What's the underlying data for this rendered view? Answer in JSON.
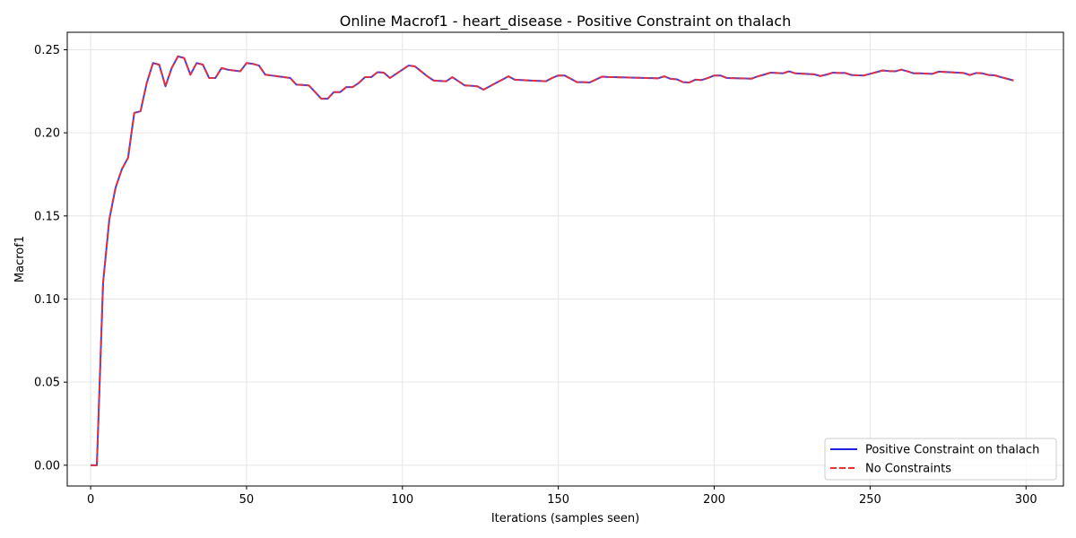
{
  "chart_data": {
    "type": "line",
    "title": "Online Macrof1 - heart_disease - Positive Constraint on thalach",
    "xlabel": "Iterations (samples seen)",
    "ylabel": "Macrof1",
    "xlim": [
      -7.5,
      312
    ],
    "ylim": [
      -0.0125,
      0.2605
    ],
    "xticks": [
      0,
      50,
      100,
      150,
      200,
      250,
      300
    ],
    "yticks": [
      0.0,
      0.05,
      0.1,
      0.15,
      0.2,
      0.25
    ],
    "xtick_labels": [
      "0",
      "50",
      "100",
      "150",
      "200",
      "250",
      "300"
    ],
    "ytick_labels": [
      "0.00",
      "0.05",
      "0.10",
      "0.15",
      "0.20",
      "0.25"
    ],
    "grid": true,
    "legend_position": "lower-right",
    "x": [
      0,
      2,
      4,
      6,
      8,
      10,
      12,
      14,
      16,
      18,
      20,
      22,
      24,
      26,
      28,
      30,
      32,
      34,
      36,
      38,
      40,
      42,
      44,
      46,
      48,
      50,
      52,
      54,
      56,
      58,
      60,
      62,
      64,
      66,
      68,
      70,
      72,
      74,
      76,
      78,
      80,
      82,
      84,
      86,
      88,
      90,
      92,
      94,
      96,
      98,
      100,
      102,
      104,
      106,
      108,
      110,
      112,
      114,
      116,
      118,
      120,
      122,
      124,
      126,
      128,
      130,
      132,
      134,
      136,
      138,
      140,
      142,
      144,
      146,
      148,
      150,
      152,
      154,
      156,
      158,
      160,
      162,
      164,
      166,
      168,
      170,
      172,
      174,
      176,
      178,
      180,
      182,
      184,
      186,
      188,
      190,
      192,
      194,
      196,
      198,
      200,
      202,
      204,
      206,
      208,
      210,
      212,
      214,
      216,
      218,
      220,
      222,
      224,
      226,
      228,
      230,
      232,
      234,
      236,
      238,
      240,
      242,
      244,
      246,
      248,
      250,
      252,
      254,
      256,
      258,
      260,
      262,
      264,
      266,
      268,
      270,
      272,
      274,
      276,
      278,
      280,
      282,
      284,
      286,
      288,
      290,
      292,
      294,
      296
    ],
    "series": [
      {
        "name": "Positive Constraint on thalach",
        "color": "#1f1fe0",
        "style": "solid",
        "values": [
          0.0,
          0.0,
          0.11,
          0.148,
          0.167,
          0.178,
          0.185,
          0.212,
          0.213,
          0.23,
          0.242,
          0.241,
          0.228,
          0.239,
          0.246,
          0.245,
          0.235,
          0.242,
          0.241,
          0.233,
          0.233,
          0.239,
          0.238,
          0.2375,
          0.237,
          0.242,
          0.2415,
          0.2405,
          0.235,
          0.2345,
          0.234,
          0.2335,
          0.233,
          0.229,
          0.2288,
          0.2285,
          0.2245,
          0.2205,
          0.2205,
          0.2245,
          0.2245,
          0.2275,
          0.2275,
          0.23,
          0.2335,
          0.2335,
          0.2365,
          0.2362,
          0.233,
          0.2355,
          0.238,
          0.2405,
          0.24,
          0.237,
          0.234,
          0.2315,
          0.2312,
          0.231,
          0.2335,
          0.231,
          0.2285,
          0.2283,
          0.228,
          0.226,
          0.228,
          0.23,
          0.232,
          0.234,
          0.232,
          0.2318,
          0.2316,
          0.2314,
          0.2312,
          0.231,
          0.233,
          0.2345,
          0.2345,
          0.2325,
          0.2305,
          0.2305,
          0.2303,
          0.232,
          0.2338,
          0.2336,
          0.2335,
          0.2334,
          0.2333,
          0.2332,
          0.2331,
          0.233,
          0.2329,
          0.2328,
          0.234,
          0.2325,
          0.2322,
          0.2305,
          0.2303,
          0.232,
          0.2318,
          0.233,
          0.2345,
          0.2345,
          0.233,
          0.2329,
          0.2328,
          0.2327,
          0.2326,
          0.234,
          0.235,
          0.2362,
          0.236,
          0.2358,
          0.237,
          0.2358,
          0.2356,
          0.2354,
          0.2352,
          0.2342,
          0.235,
          0.2362,
          0.236,
          0.236,
          0.2348,
          0.2346,
          0.2345,
          0.2355,
          0.2365,
          0.2375,
          0.2372,
          0.237,
          0.238,
          0.237,
          0.2358,
          0.2358,
          0.2356,
          0.2355,
          0.2368,
          0.2366,
          0.2364,
          0.2362,
          0.236,
          0.2348,
          0.236,
          0.2358,
          0.2348,
          0.2346,
          0.2335,
          0.2325,
          0.2315
        ]
      },
      {
        "name": "No Constraints",
        "color": "#f03030",
        "style": "dashed",
        "values": [
          0.0,
          0.0,
          0.11,
          0.148,
          0.167,
          0.178,
          0.185,
          0.212,
          0.213,
          0.23,
          0.242,
          0.241,
          0.228,
          0.239,
          0.246,
          0.245,
          0.235,
          0.242,
          0.241,
          0.233,
          0.233,
          0.239,
          0.238,
          0.2375,
          0.237,
          0.242,
          0.2415,
          0.2405,
          0.235,
          0.2345,
          0.234,
          0.2335,
          0.233,
          0.229,
          0.2288,
          0.2285,
          0.2245,
          0.2205,
          0.2205,
          0.2245,
          0.2245,
          0.2275,
          0.2275,
          0.23,
          0.2335,
          0.2335,
          0.2365,
          0.2362,
          0.233,
          0.2355,
          0.238,
          0.2405,
          0.24,
          0.237,
          0.234,
          0.2315,
          0.2312,
          0.231,
          0.2335,
          0.231,
          0.2285,
          0.2283,
          0.228,
          0.226,
          0.228,
          0.23,
          0.232,
          0.234,
          0.232,
          0.2318,
          0.2316,
          0.2314,
          0.2312,
          0.231,
          0.233,
          0.2345,
          0.2345,
          0.2325,
          0.2305,
          0.2305,
          0.2303,
          0.232,
          0.2338,
          0.2336,
          0.2335,
          0.2334,
          0.2333,
          0.2332,
          0.2331,
          0.233,
          0.2329,
          0.2328,
          0.234,
          0.2325,
          0.2322,
          0.2305,
          0.2303,
          0.232,
          0.2318,
          0.233,
          0.2345,
          0.2345,
          0.233,
          0.2329,
          0.2328,
          0.2327,
          0.2326,
          0.234,
          0.235,
          0.2362,
          0.236,
          0.2358,
          0.237,
          0.2358,
          0.2356,
          0.2354,
          0.2352,
          0.2342,
          0.235,
          0.2362,
          0.236,
          0.236,
          0.2348,
          0.2346,
          0.2345,
          0.2355,
          0.2365,
          0.2375,
          0.2372,
          0.237,
          0.238,
          0.237,
          0.2358,
          0.2358,
          0.2356,
          0.2355,
          0.2368,
          0.2366,
          0.2364,
          0.2362,
          0.236,
          0.2348,
          0.236,
          0.2358,
          0.2348,
          0.2346,
          0.2335,
          0.2325,
          0.2315
        ]
      }
    ]
  }
}
